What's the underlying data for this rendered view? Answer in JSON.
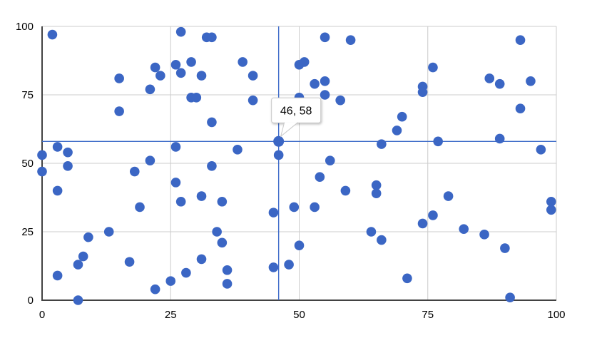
{
  "chart_data": {
    "type": "scatter",
    "title": "",
    "xlabel": "",
    "ylabel": "",
    "xlim": [
      0,
      100
    ],
    "ylim": [
      0,
      100
    ],
    "x_ticks": [
      "0",
      "25",
      "50",
      "75",
      "100"
    ],
    "y_ticks": [
      "0",
      "25",
      "50",
      "75",
      "100"
    ],
    "x_tick_values": [
      0,
      25,
      50,
      75,
      100
    ],
    "y_tick_values": [
      0,
      25,
      50,
      75,
      100
    ],
    "grid": true,
    "legend": "none",
    "points": [
      [
        2,
        97
      ],
      [
        15,
        81
      ],
      [
        27,
        98
      ],
      [
        22,
        85
      ],
      [
        23,
        82
      ],
      [
        26,
        86
      ],
      [
        27,
        83
      ],
      [
        21,
        77
      ],
      [
        15,
        69
      ],
      [
        0,
        53
      ],
      [
        3,
        56
      ],
      [
        5,
        54
      ],
      [
        26,
        56
      ],
      [
        21,
        51
      ],
      [
        32,
        96
      ],
      [
        33,
        96
      ],
      [
        29,
        87
      ],
      [
        39,
        87
      ],
      [
        31,
        82
      ],
      [
        41,
        82
      ],
      [
        50,
        86
      ],
      [
        51,
        87
      ],
      [
        55,
        96
      ],
      [
        60,
        95
      ],
      [
        53,
        79
      ],
      [
        55,
        80
      ],
      [
        55,
        75
      ],
      [
        50,
        74
      ],
      [
        58,
        73
      ],
      [
        29,
        74
      ],
      [
        30,
        74
      ],
      [
        41,
        73
      ],
      [
        33,
        65
      ],
      [
        66,
        57
      ],
      [
        38,
        55
      ],
      [
        46,
        53
      ],
      [
        56,
        51
      ],
      [
        33,
        49
      ],
      [
        93,
        95
      ],
      [
        76,
        85
      ],
      [
        87,
        81
      ],
      [
        89,
        79
      ],
      [
        95,
        80
      ],
      [
        74,
        78
      ],
      [
        74,
        76
      ],
      [
        93,
        70
      ],
      [
        70,
        67
      ],
      [
        69,
        62
      ],
      [
        77,
        58
      ],
      [
        89,
        59
      ],
      [
        97,
        55
      ],
      [
        0,
        47
      ],
      [
        5,
        49
      ],
      [
        3,
        40
      ],
      [
        18,
        47
      ],
      [
        26,
        43
      ],
      [
        27,
        36
      ],
      [
        19,
        34
      ],
      [
        13,
        25
      ],
      [
        9,
        23
      ],
      [
        8,
        16
      ],
      [
        7,
        13
      ],
      [
        17,
        14
      ],
      [
        3,
        9
      ],
      [
        7,
        0
      ],
      [
        22,
        4
      ],
      [
        25,
        7
      ],
      [
        28,
        10
      ],
      [
        54,
        45
      ],
      [
        31,
        38
      ],
      [
        35,
        36
      ],
      [
        59,
        40
      ],
      [
        65,
        42
      ],
      [
        65,
        39
      ],
      [
        45,
        32
      ],
      [
        49,
        34
      ],
      [
        53,
        34
      ],
      [
        34,
        25
      ],
      [
        35,
        21
      ],
      [
        64,
        25
      ],
      [
        66,
        22
      ],
      [
        50,
        20
      ],
      [
        31,
        15
      ],
      [
        36,
        11
      ],
      [
        36,
        6
      ],
      [
        45,
        12
      ],
      [
        48,
        13
      ],
      [
        79,
        38
      ],
      [
        76,
        31
      ],
      [
        74,
        28
      ],
      [
        82,
        26
      ],
      [
        86,
        24
      ],
      [
        90,
        19
      ],
      [
        99,
        36
      ],
      [
        99,
        33
      ],
      [
        71,
        8
      ],
      [
        91,
        1
      ]
    ],
    "selected_point": {
      "x": 46,
      "y": 58
    }
  },
  "tooltip": {
    "label": "46, 58"
  },
  "colors": {
    "point": "#3B66C4",
    "selected_point": "#3B66C4",
    "crosshair": "#3E6BC9",
    "grid": "#CCCCCC",
    "axis": "#424242",
    "tick_label": "#000000",
    "tooltip_bg": "#FFFFFF",
    "tooltip_border": "#C9C9C9",
    "tooltip_text": "#000000",
    "background": "#FFFFFF"
  }
}
